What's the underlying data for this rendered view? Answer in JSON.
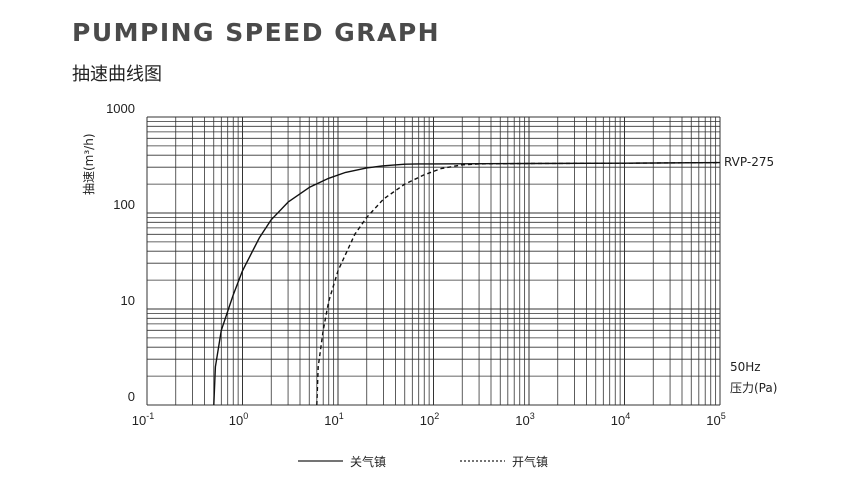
{
  "header": {
    "title": "PUMPING SPEED GRAPH",
    "subtitle": "抽速曲线图"
  },
  "chart_data": {
    "type": "line",
    "title": "PUMPING SPEED GRAPH",
    "subtitle": "抽速曲线图",
    "ylabel": "抽速(m³/h)",
    "xlabel": "压力(Pa)",
    "frequency_label": "50Hz",
    "x_scale": "log",
    "y_scale": "log",
    "xlim": [
      0.1,
      100000
    ],
    "x_ticks": [
      {
        "base": "10",
        "exp": "-1"
      },
      {
        "base": "10",
        "exp": "0"
      },
      {
        "base": "10",
        "exp": "1"
      },
      {
        "base": "10",
        "exp": "2"
      },
      {
        "base": "10",
        "exp": "3"
      },
      {
        "base": "10",
        "exp": "4"
      },
      {
        "base": "10",
        "exp": "5"
      }
    ],
    "y_ticks": [
      "0",
      "10",
      "100",
      "1000"
    ],
    "grid": true,
    "series_label": "RVP-275",
    "series": [
      {
        "name": "关气镇",
        "style": "solid",
        "x": [
          0.5,
          0.52,
          0.6,
          0.8,
          1.0,
          1.5,
          2,
          3,
          5,
          8,
          12,
          20,
          30,
          50,
          70,
          100,
          1000,
          10000,
          100000
        ],
        "y": [
          1,
          2.5,
          6,
          14,
          25,
          55,
          85,
          130,
          185,
          230,
          265,
          295,
          310,
          322,
          325,
          325,
          328,
          330,
          335
        ]
      },
      {
        "name": "开气镇",
        "style": "dashed",
        "x": [
          6,
          6.2,
          7,
          8,
          10,
          15,
          20,
          30,
          50,
          80,
          120,
          200,
          300,
          1000,
          10000,
          100000
        ],
        "y": [
          1,
          2.5,
          6,
          12,
          25,
          60,
          90,
          140,
          200,
          250,
          290,
          318,
          325,
          328,
          330,
          335
        ]
      }
    ],
    "legend": {
      "position": "bottom-center",
      "entries": [
        "关气镇",
        "开气镇"
      ]
    }
  }
}
